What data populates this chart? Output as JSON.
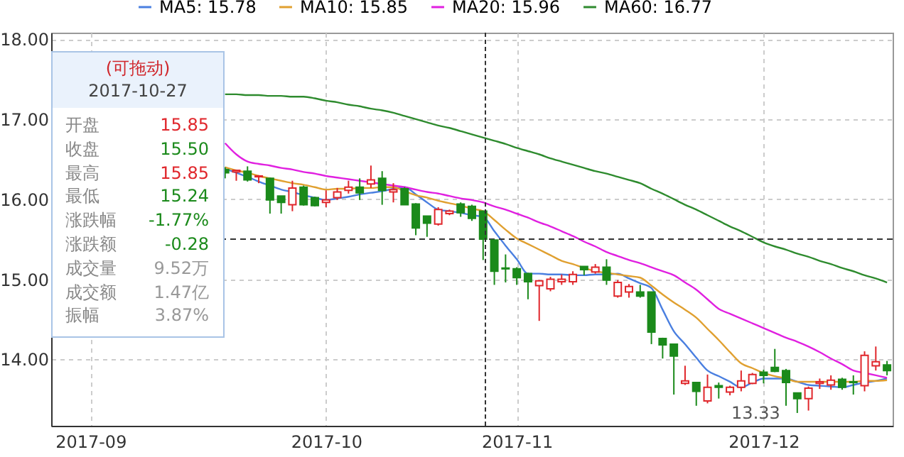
{
  "chart_data": {
    "type": "candlestick",
    "categories": [
      null,
      null,
      null,
      "2017-09",
      null,
      null,
      null,
      null,
      null,
      null,
      null,
      null,
      null,
      null,
      null,
      null,
      null,
      null,
      null,
      null,
      null,
      null,
      null,
      null,
      "2017-10",
      null,
      null,
      null,
      null,
      null,
      null,
      null,
      null,
      null,
      null,
      null,
      null,
      null,
      null,
      null,
      null,
      "2017-11",
      null,
      null,
      null,
      null,
      null,
      null,
      null,
      null,
      null,
      null,
      null,
      null,
      null,
      null,
      null,
      null,
      null,
      null,
      null,
      null,
      null,
      "2017-12",
      null,
      null,
      null,
      null,
      null,
      null,
      null,
      null,
      null,
      null,
      null
    ],
    "ohlc": [
      null,
      null,
      null,
      null,
      null,
      null,
      null,
      null,
      null,
      null,
      null,
      null,
      null,
      null,
      null,
      [
        16.37,
        16.4,
        16.26,
        16.33
      ],
      [
        16.34,
        16.37,
        16.23,
        16.36
      ],
      [
        16.35,
        16.41,
        16.22,
        16.24
      ],
      [
        16.28,
        16.3,
        16.2,
        16.29
      ],
      [
        16.26,
        16.27,
        15.82,
        15.99
      ],
      [
        16.04,
        16.04,
        15.82,
        15.96
      ],
      [
        15.93,
        16.23,
        15.85,
        16.14
      ],
      [
        16.15,
        16.17,
        15.92,
        15.93
      ],
      [
        16.02,
        16.03,
        15.91,
        15.92
      ],
      [
        15.96,
        16.11,
        15.9,
        15.99
      ],
      [
        16.02,
        16.14,
        15.99,
        16.09
      ],
      [
        16.11,
        16.23,
        16.07,
        16.15
      ],
      [
        16.15,
        16.26,
        15.99,
        16.08
      ],
      [
        16.19,
        16.42,
        16.14,
        16.24
      ],
      [
        16.26,
        16.35,
        15.93,
        16.11
      ],
      [
        16.09,
        16.2,
        15.96,
        16.12
      ],
      [
        16.13,
        16.15,
        15.93,
        15.93
      ],
      [
        15.94,
        15.95,
        15.55,
        15.64
      ],
      [
        15.79,
        15.79,
        15.53,
        15.7
      ],
      [
        15.69,
        15.9,
        15.67,
        15.87
      ],
      [
        15.82,
        15.87,
        15.8,
        15.85
      ],
      [
        15.94,
        15.96,
        15.78,
        15.83
      ],
      [
        15.91,
        15.93,
        15.73,
        15.76
      ],
      [
        15.85,
        15.85,
        15.24,
        15.5
      ],
      [
        15.49,
        15.49,
        14.93,
        15.1
      ],
      [
        15.14,
        15.31,
        14.96,
        15.13
      ],
      [
        15.13,
        15.15,
        14.93,
        15.02
      ],
      [
        15.07,
        15.08,
        14.75,
        14.97
      ],
      [
        14.92,
        14.99,
        14.48,
        14.98
      ],
      [
        14.88,
        15.03,
        14.85,
        15.0
      ],
      [
        14.97,
        15.06,
        14.93,
        15.0
      ],
      [
        14.97,
        15.1,
        14.93,
        15.06
      ],
      [
        15.16,
        15.16,
        15.05,
        15.12
      ],
      [
        15.09,
        15.19,
        15.07,
        15.15
      ],
      [
        15.15,
        15.25,
        14.93,
        14.99
      ],
      [
        14.79,
        14.99,
        14.77,
        14.96
      ],
      [
        14.84,
        14.94,
        14.77,
        14.91
      ],
      [
        14.84,
        14.93,
        14.77,
        14.79
      ],
      [
        14.84,
        14.84,
        14.19,
        14.34
      ],
      [
        14.26,
        14.27,
        14.01,
        14.18
      ],
      [
        14.19,
        14.19,
        13.56,
        14.04
      ],
      [
        13.7,
        13.92,
        13.68,
        13.73
      ],
      [
        13.71,
        13.71,
        13.42,
        13.6
      ],
      [
        13.48,
        13.81,
        13.45,
        13.65
      ],
      [
        13.67,
        13.71,
        13.51,
        13.65
      ],
      [
        13.59,
        13.67,
        13.55,
        13.65
      ],
      [
        13.65,
        13.86,
        13.6,
        13.73
      ],
      [
        13.7,
        13.83,
        13.69,
        13.81
      ],
      [
        13.84,
        13.87,
        13.7,
        13.8
      ],
      [
        13.9,
        14.13,
        13.84,
        13.85
      ],
      [
        13.86,
        13.88,
        13.42,
        13.71
      ],
      [
        13.58,
        13.58,
        13.33,
        13.51
      ],
      [
        13.51,
        13.66,
        13.36,
        13.64
      ],
      [
        13.7,
        13.76,
        13.63,
        13.72
      ],
      [
        13.68,
        13.8,
        13.62,
        13.74
      ],
      [
        13.75,
        13.77,
        13.62,
        13.65
      ],
      [
        13.72,
        13.8,
        13.56,
        13.71
      ],
      [
        13.67,
        14.1,
        13.6,
        14.05
      ],
      [
        13.92,
        14.16,
        13.86,
        13.97
      ],
      [
        13.93,
        13.98,
        13.8,
        13.86
      ]
    ],
    "series": [
      {
        "name": "MA5: 15.78",
        "type": "line",
        "color": "#4a7fe0",
        "values": [
          null,
          null,
          null,
          null,
          null,
          null,
          null,
          null,
          null,
          null,
          null,
          null,
          null,
          null,
          null,
          16.38,
          16.33,
          16.28,
          16.22,
          16.17,
          16.12,
          16.09,
          16.05,
          16.02,
          15.99,
          16.01,
          16.03,
          16.06,
          16.08,
          16.1,
          16.13,
          16.15,
          16.06,
          15.96,
          15.87,
          15.85,
          15.83,
          15.8,
          15.78,
          15.6,
          15.42,
          15.25,
          15.07,
          15.07,
          15.06,
          15.06,
          15.05,
          15.05,
          15.06,
          15.06,
          15.07,
          15.01,
          14.95,
          14.89,
          14.62,
          14.35,
          14.19,
          14.02,
          13.86,
          13.79,
          13.72,
          13.65,
          13.71,
          13.76,
          13.76,
          13.76,
          13.72,
          13.68,
          13.67,
          13.66,
          13.65,
          13.68,
          13.71,
          13.73,
          13.76
        ]
      },
      {
        "name": "MA10: 15.85",
        "type": "line",
        "color": "#e0a030",
        "values": [
          null,
          null,
          null,
          null,
          null,
          null,
          null,
          null,
          null,
          null,
          null,
          null,
          null,
          null,
          null,
          16.4,
          16.36,
          16.33,
          16.29,
          16.26,
          16.23,
          16.2,
          16.18,
          16.15,
          16.12,
          16.13,
          16.13,
          16.14,
          16.14,
          16.15,
          16.15,
          16.1,
          16.05,
          16.02,
          15.98,
          15.95,
          15.92,
          15.88,
          15.85,
          15.74,
          15.62,
          15.51,
          15.44,
          15.37,
          15.3,
          15.23,
          15.19,
          15.14,
          15.1,
          15.08,
          15.06,
          15.04,
          15.02,
          14.92,
          14.81,
          14.71,
          14.62,
          14.52,
          14.38,
          14.24,
          14.09,
          13.95,
          13.89,
          13.83,
          13.79,
          13.76,
          13.72,
          13.72,
          13.72,
          13.72,
          13.72,
          13.72,
          13.73,
          13.73,
          13.74
        ]
      },
      {
        "name": "MA20: 15.96",
        "type": "line",
        "color": "#e020e0",
        "values": [
          null,
          null,
          null,
          null,
          null,
          null,
          null,
          null,
          null,
          null,
          null,
          null,
          null,
          null,
          null,
          16.7,
          16.56,
          16.47,
          16.44,
          16.42,
          16.39,
          16.37,
          16.34,
          16.32,
          16.29,
          16.27,
          16.25,
          16.23,
          16.21,
          16.19,
          16.17,
          16.15,
          16.12,
          16.09,
          16.07,
          16.04,
          16.01,
          15.99,
          15.96,
          15.91,
          15.87,
          15.82,
          15.77,
          15.71,
          15.66,
          15.6,
          15.54,
          15.47,
          15.41,
          15.34,
          15.29,
          15.24,
          15.2,
          15.15,
          15.1,
          15.05,
          14.96,
          14.87,
          14.75,
          14.63,
          14.57,
          14.51,
          14.45,
          14.39,
          14.33,
          14.27,
          14.22,
          14.16,
          14.09,
          14.01,
          13.94,
          13.86,
          13.83,
          13.8,
          13.77
        ]
      },
      {
        "name": "MA60: 16.77",
        "type": "line",
        "color": "#2e8b2e",
        "values": [
          null,
          null,
          null,
          null,
          null,
          null,
          null,
          null,
          null,
          null,
          null,
          null,
          null,
          null,
          null,
          17.31,
          17.31,
          17.3,
          17.3,
          17.29,
          17.29,
          17.28,
          17.28,
          17.26,
          17.23,
          17.21,
          17.18,
          17.16,
          17.13,
          17.11,
          17.08,
          17.04,
          17.0,
          16.96,
          16.92,
          16.89,
          16.85,
          16.81,
          16.77,
          16.73,
          16.69,
          16.64,
          16.6,
          16.56,
          16.51,
          16.47,
          16.43,
          16.39,
          16.35,
          16.32,
          16.28,
          16.24,
          16.2,
          16.13,
          16.07,
          16.0,
          15.93,
          15.87,
          15.8,
          15.73,
          15.66,
          15.6,
          15.53,
          15.46,
          15.41,
          15.37,
          15.32,
          15.28,
          15.23,
          15.19,
          15.14,
          15.1,
          15.05,
          15.01,
          14.96
        ]
      }
    ],
    "ylim": [
      13.17,
      18.08
    ],
    "yticks": [
      {
        "value": 14,
        "label": "14.00"
      },
      {
        "value": 15,
        "label": "15.00"
      },
      {
        "value": 16,
        "label": "16.00"
      },
      {
        "value": 17,
        "label": "17.00"
      },
      {
        "value": 18,
        "label": "18.00"
      }
    ],
    "grid": true,
    "legend": "top",
    "ref_lines": [
      {
        "axis": "y",
        "value": 15.5,
        "color": "#333333",
        "line_style": "dashed"
      }
    ],
    "annotations": [
      "(可拖动)",
      "2017-10-27",
      "开盘",
      "15.85",
      "收盘",
      "15.50",
      "最高",
      "15.85",
      "最低",
      "15.24",
      "涨跌幅",
      "-1.77%",
      "涨跌额",
      "-0.28",
      "成交量",
      "9.52万",
      "成交额",
      "1.47亿",
      "振幅",
      "3.87%",
      "13.33"
    ]
  }
}
